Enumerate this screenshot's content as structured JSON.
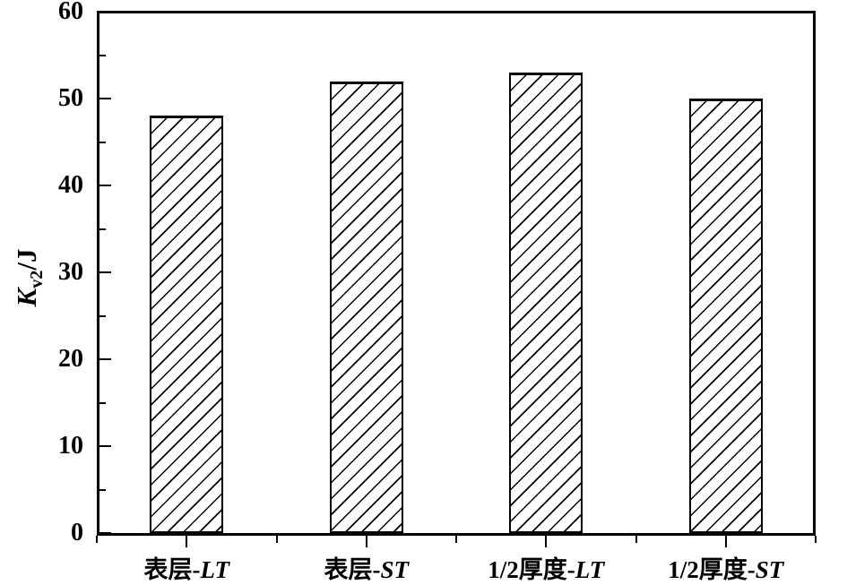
{
  "chart_data": {
    "type": "bar",
    "title": "",
    "categories": [
      {
        "full": "表层-LT",
        "prefix": "表层-",
        "suffix": "LT"
      },
      {
        "full": "表层-ST",
        "prefix": "表层-",
        "suffix": "ST"
      },
      {
        "full": "1/2厚度-LT",
        "prefix": "1/2厚度-",
        "suffix": "LT"
      },
      {
        "full": "1/2厚度-ST",
        "prefix": "1/2厚度-",
        "suffix": "ST"
      }
    ],
    "values": [
      48,
      52,
      53,
      50
    ],
    "xlabel": "",
    "ylabel": {
      "k": "K",
      "sub": "v2",
      "rest": "/J",
      "full": "Kv2/J"
    },
    "ylim": [
      0,
      60
    ],
    "yticks_major": [
      0,
      10,
      20,
      30,
      40,
      50,
      60
    ],
    "yticks_minor": [
      5,
      15,
      25,
      35,
      45,
      55
    ],
    "grid": "off",
    "legend_position": "none",
    "bar_style": {
      "fill": "hatch-forward-diagonal",
      "hatch_color": "#000000",
      "background": "#ffffff",
      "border_color": "#000000"
    },
    "axis_color": "#000000",
    "plot_background": "#ffffff"
  }
}
